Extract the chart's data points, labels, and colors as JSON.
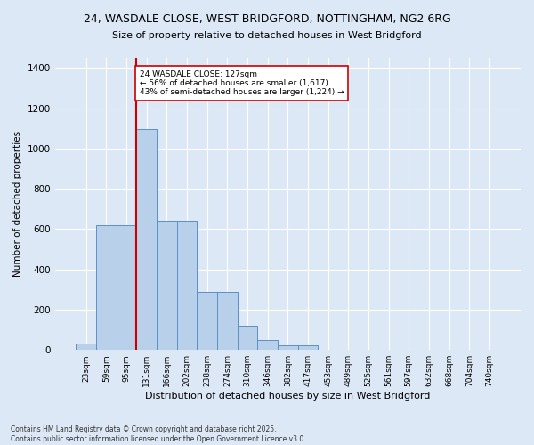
{
  "title_line1": "24, WASDALE CLOSE, WEST BRIDGFORD, NOTTINGHAM, NG2 6RG",
  "title_line2": "Size of property relative to detached houses in West Bridgford",
  "xlabel": "Distribution of detached houses by size in West Bridgford",
  "ylabel": "Number of detached properties",
  "categories": [
    "23sqm",
    "59sqm",
    "95sqm",
    "131sqm",
    "166sqm",
    "202sqm",
    "238sqm",
    "274sqm",
    "310sqm",
    "346sqm",
    "382sqm",
    "417sqm",
    "453sqm",
    "489sqm",
    "525sqm",
    "561sqm",
    "597sqm",
    "632sqm",
    "668sqm",
    "704sqm",
    "740sqm"
  ],
  "values": [
    30,
    620,
    620,
    1095,
    640,
    640,
    290,
    290,
    120,
    50,
    25,
    25,
    0,
    0,
    0,
    0,
    0,
    0,
    0,
    0,
    0
  ],
  "bar_color": "#b8d0ea",
  "bar_edge_color": "#5b8fc9",
  "background_color": "#dce8f5",
  "grid_color": "#ffffff",
  "vline_color": "#cc0000",
  "vline_x_index": 2.5,
  "annotation_text": "24 WASDALE CLOSE: 127sqm\n← 56% of detached houses are smaller (1,617)\n43% of semi-detached houses are larger (1,224) →",
  "annotation_box_color": "#ffffff",
  "annotation_box_edge": "#cc0000",
  "ylim": [
    0,
    1450
  ],
  "yticks": [
    0,
    200,
    400,
    600,
    800,
    1000,
    1200,
    1400
  ],
  "footnote": "Contains HM Land Registry data © Crown copyright and database right 2025.\nContains public sector information licensed under the Open Government Licence v3.0."
}
